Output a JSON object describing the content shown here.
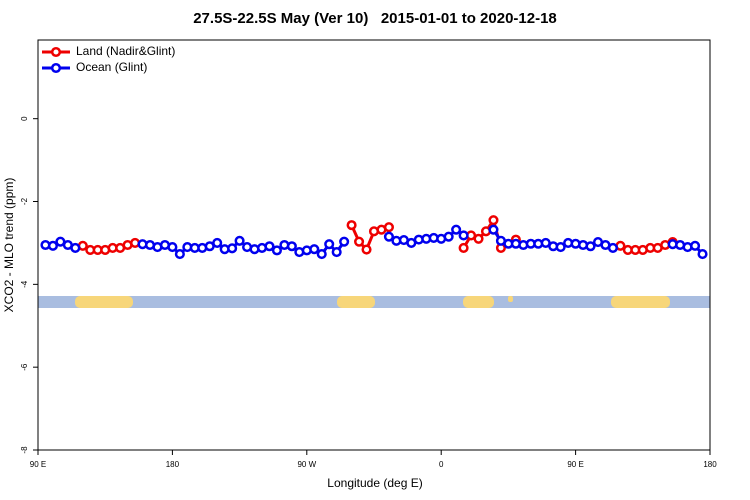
{
  "chart_data": {
    "type": "line",
    "title": "27.5S-22.5S May (Ver 10)   2015-01-01 to 2020-12-18",
    "x_label": "Longitude (deg E)",
    "y_label": "XCO2 - MLO trend (ppm)",
    "x": [
      95,
      100,
      105,
      110,
      115,
      120,
      125,
      130,
      135,
      140,
      145,
      150,
      155,
      160,
      165,
      170,
      175,
      180,
      185,
      190,
      195,
      200,
      205,
      210,
      215,
      220,
      225,
      230,
      235,
      240,
      245,
      250,
      255,
      260,
      265,
      270,
      275,
      280,
      285,
      290,
      295,
      300,
      305,
      310,
      315,
      320,
      325,
      330,
      335,
      340,
      345,
      350,
      355,
      360,
      365,
      370,
      375,
      380,
      385,
      390,
      395,
      400,
      405,
      410,
      415,
      420,
      425,
      430,
      435,
      440,
      445,
      450,
      455,
      460,
      465,
      470,
      475,
      480,
      485,
      490,
      495,
      500,
      505,
      510,
      515,
      520,
      525,
      530,
      535
    ],
    "series": [
      {
        "name": "Land (Nadir&Glint)",
        "color": "#ee0000",
        "values": [
          null,
          null,
          null,
          null,
          null,
          -3.07,
          -3.17,
          -3.17,
          -3.17,
          -3.12,
          -3.12,
          -3.05,
          -3.0,
          null,
          null,
          null,
          null,
          null,
          null,
          null,
          null,
          null,
          null,
          null,
          null,
          null,
          null,
          null,
          null,
          null,
          null,
          null,
          null,
          null,
          null,
          null,
          null,
          null,
          null,
          null,
          null,
          -2.57,
          -2.97,
          -3.16,
          -2.72,
          -2.68,
          -2.62,
          null,
          null,
          null,
          null,
          null,
          null,
          null,
          null,
          null,
          -3.12,
          -2.82,
          -2.9,
          -2.72,
          -2.45,
          -3.12,
          null,
          -2.92,
          null,
          null,
          null,
          null,
          null,
          null,
          null,
          null,
          null,
          null,
          null,
          null,
          null,
          -3.07,
          -3.17,
          -3.17,
          -3.17,
          -3.12,
          -3.12,
          -3.05,
          -2.98,
          null,
          null,
          null,
          null
        ]
      },
      {
        "name": "Ocean (Glint)",
        "color": "#0000ee",
        "values": [
          -3.05,
          -3.07,
          -2.97,
          -3.05,
          -3.12,
          null,
          null,
          null,
          null,
          null,
          null,
          null,
          null,
          -3.03,
          -3.05,
          -3.1,
          -3.05,
          -3.1,
          -3.27,
          -3.1,
          -3.12,
          -3.12,
          -3.08,
          -3.0,
          -3.15,
          -3.13,
          -2.95,
          -3.1,
          -3.15,
          -3.12,
          -3.08,
          -3.18,
          -3.05,
          -3.08,
          -3.22,
          -3.18,
          -3.15,
          -3.27,
          -3.03,
          -3.22,
          -2.97,
          null,
          null,
          null,
          null,
          null,
          -2.85,
          -2.95,
          -2.93,
          -3.0,
          -2.92,
          -2.9,
          -2.88,
          -2.9,
          -2.85,
          -2.68,
          -2.82,
          null,
          null,
          null,
          -2.68,
          -2.95,
          -3.02,
          -3.02,
          -3.05,
          -3.02,
          -3.02,
          -3.0,
          -3.08,
          -3.1,
          -3.0,
          -3.02,
          -3.05,
          -3.08,
          -2.98,
          -3.05,
          -3.12,
          null,
          null,
          null,
          null,
          null,
          null,
          null,
          -3.03,
          -3.05,
          -3.1,
          -3.07,
          -3.27
        ]
      }
    ],
    "xlim": [
      90,
      540
    ],
    "xticks": [
      {
        "value": 90,
        "label": "90 E"
      },
      180,
      {
        "value": 270,
        "label": "90 W"
      },
      {
        "value": 360,
        "label": "0"
      },
      {
        "value": 450,
        "label": "90 E"
      },
      {
        "value": 540,
        "label": "180"
      }
    ],
    "ylim": [
      -8.0,
      1.9
    ],
    "yticks": [
      0,
      -2,
      -4,
      -6,
      -8
    ],
    "legend": "top-left"
  }
}
